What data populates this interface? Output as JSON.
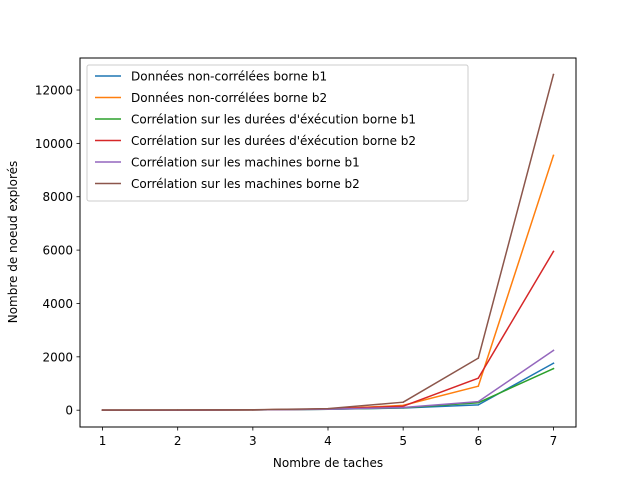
{
  "chart_data": {
    "type": "line",
    "title": "",
    "xlabel": "Nombre de taches",
    "ylabel": "Nombre de noeud explorés",
    "x": [
      1,
      2,
      3,
      4,
      5,
      6,
      7
    ],
    "xlim": [
      0.7,
      7.3
    ],
    "ylim": [
      -630,
      13200
    ],
    "xticks": [
      1,
      2,
      3,
      4,
      5,
      6,
      7
    ],
    "yticks": [
      0,
      2000,
      4000,
      6000,
      8000,
      10000,
      12000
    ],
    "grid": false,
    "legend_position": "upper-left",
    "series": [
      {
        "name": "Données non-corrélées borne b1",
        "color": "#1f77b4",
        "values": [
          1,
          3,
          10,
          35,
          80,
          200,
          1760
        ]
      },
      {
        "name": "Données non-corrélées borne b2",
        "color": "#ff7f0e",
        "values": [
          1,
          4,
          12,
          45,
          180,
          900,
          9550
        ]
      },
      {
        "name": "Corrélation sur les durées d'éxécution borne b1",
        "color": "#2ca02c",
        "values": [
          1,
          3,
          10,
          35,
          90,
          280,
          1560
        ]
      },
      {
        "name": "Corrélation sur les durées d'éxécution borne b2",
        "color": "#d62728",
        "values": [
          1,
          4,
          12,
          45,
          150,
          1200,
          5950
        ]
      },
      {
        "name": "Corrélation sur les machines borne b1",
        "color": "#9467bd",
        "values": [
          1,
          3,
          10,
          35,
          100,
          320,
          2240
        ]
      },
      {
        "name": "Corrélation sur les machines borne b2",
        "color": "#8c564b",
        "values": [
          1,
          5,
          15,
          60,
          300,
          1950,
          12580
        ]
      }
    ]
  }
}
